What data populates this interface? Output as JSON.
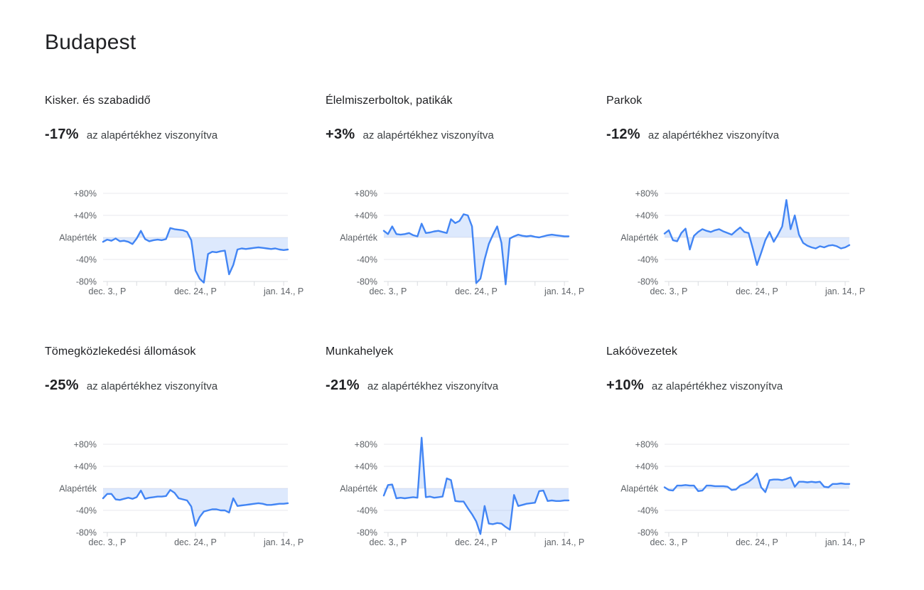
{
  "page": {
    "title": "Budapest"
  },
  "labels": {
    "caption": "az alapértékhez viszonyítva"
  },
  "colors": {
    "line": "#4285f4",
    "fill": "rgba(66,133,244,0.18)",
    "grid": "#e8eaed",
    "axis": "#dadce0",
    "text_primary": "#202124",
    "text_secondary": "#5f6368"
  },
  "chart_data": [
    {
      "type": "line",
      "title": "Kisker. és szabadidő",
      "delta": "-17%",
      "ylim": [
        -80,
        80
      ],
      "y_tick_labels": [
        "+80%",
        "+40%",
        "Alapérték",
        "-40%",
        "-80%"
      ],
      "x_tick_labels": [
        "dec. 3., P",
        "dec. 24., P",
        "jan. 14., P"
      ],
      "label_tick_day_indices": [
        1,
        22,
        43
      ],
      "minor_tick_day_indices": [
        1,
        8,
        15,
        22,
        29,
        36,
        43
      ],
      "values": [
        -8,
        -4,
        -6,
        -2,
        -7,
        -6,
        -8,
        -12,
        -2,
        12,
        -3,
        -7,
        -5,
        -4,
        -5,
        -3,
        17,
        15,
        14,
        13,
        10,
        -5,
        -60,
        -75,
        -82,
        -30,
        -26,
        -27,
        -25,
        -24,
        -67,
        -50,
        -22,
        -20,
        -21,
        -20,
        -19,
        -18,
        -19,
        -20,
        -21,
        -20,
        -22,
        -23,
        -22
      ]
    },
    {
      "type": "line",
      "title": "Élelmiszerboltok, patikák",
      "delta": "+3%",
      "ylim": [
        -80,
        80
      ],
      "y_tick_labels": [
        "+80%",
        "+40%",
        "Alapérték",
        "-40%",
        "-80%"
      ],
      "x_tick_labels": [
        "dec. 3., P",
        "dec. 24., P",
        "jan. 14., P"
      ],
      "label_tick_day_indices": [
        1,
        22,
        43
      ],
      "minor_tick_day_indices": [
        1,
        8,
        15,
        22,
        29,
        36,
        43
      ],
      "values": [
        12,
        6,
        20,
        6,
        5,
        6,
        8,
        4,
        2,
        25,
        8,
        9,
        11,
        12,
        10,
        8,
        33,
        26,
        30,
        42,
        40,
        20,
        -83,
        -75,
        -40,
        -12,
        5,
        20,
        -10,
        -85,
        -2,
        2,
        5,
        3,
        2,
        3,
        1,
        0,
        2,
        4,
        5,
        4,
        3,
        2,
        2
      ]
    },
    {
      "type": "line",
      "title": "Parkok",
      "delta": "-12%",
      "ylim": [
        -80,
        80
      ],
      "y_tick_labels": [
        "+80%",
        "+40%",
        "Alapérték",
        "-40%",
        "-80%"
      ],
      "x_tick_labels": [
        "dec. 3., P",
        "dec. 24., P",
        "jan. 14., P"
      ],
      "label_tick_day_indices": [
        1,
        22,
        43
      ],
      "minor_tick_day_indices": [
        1,
        8,
        15,
        22,
        29,
        36,
        43
      ],
      "values": [
        7,
        13,
        -5,
        -7,
        8,
        16,
        -22,
        3,
        10,
        15,
        12,
        10,
        13,
        15,
        11,
        8,
        5,
        12,
        18,
        10,
        8,
        -20,
        -50,
        -28,
        -5,
        10,
        -8,
        5,
        20,
        68,
        15,
        40,
        5,
        -10,
        -15,
        -18,
        -20,
        -16,
        -18,
        -15,
        -14,
        -16,
        -20,
        -18,
        -14
      ]
    },
    {
      "type": "line",
      "title": "Tömegközlekedési állomások",
      "delta": "-25%",
      "ylim": [
        -80,
        80
      ],
      "y_tick_labels": [
        "+80%",
        "+40%",
        "Alapérték",
        "-40%",
        "-80%"
      ],
      "x_tick_labels": [
        "dec. 3., P",
        "dec. 24., P",
        "jan. 14., P"
      ],
      "label_tick_day_indices": [
        1,
        22,
        43
      ],
      "minor_tick_day_indices": [
        1,
        8,
        15,
        22,
        29,
        36,
        43
      ],
      "values": [
        -18,
        -10,
        -10,
        -20,
        -21,
        -19,
        -17,
        -19,
        -16,
        -4,
        -19,
        -17,
        -16,
        -15,
        -15,
        -14,
        -3,
        -8,
        -18,
        -20,
        -22,
        -33,
        -68,
        -52,
        -42,
        -40,
        -38,
        -38,
        -40,
        -40,
        -44,
        -18,
        -32,
        -31,
        -30,
        -29,
        -28,
        -27,
        -28,
        -30,
        -30,
        -29,
        -28,
        -28,
        -27
      ]
    },
    {
      "type": "line",
      "title": "Munkahelyek",
      "delta": "-21%",
      "ylim": [
        -80,
        80
      ],
      "y_tick_labels": [
        "+80%",
        "+40%",
        "Alapérték",
        "-40%",
        "-80%"
      ],
      "x_tick_labels": [
        "dec. 3., P",
        "dec. 24., P",
        "jan. 14., P"
      ],
      "label_tick_day_indices": [
        1,
        22,
        43
      ],
      "minor_tick_day_indices": [
        1,
        8,
        15,
        22,
        29,
        36,
        43
      ],
      "values": [
        -13,
        6,
        7,
        -18,
        -17,
        -18,
        -17,
        -16,
        -17,
        92,
        -16,
        -15,
        -17,
        -16,
        -15,
        18,
        15,
        -23,
        -24,
        -24,
        -36,
        -47,
        -60,
        -83,
        -32,
        -64,
        -65,
        -63,
        -64,
        -70,
        -75,
        -12,
        -32,
        -30,
        -28,
        -27,
        -26,
        -5,
        -4,
        -23,
        -22,
        -23,
        -23,
        -22,
        -22
      ]
    },
    {
      "type": "line",
      "title": "Lakóövezetek",
      "delta": "+10%",
      "ylim": [
        -80,
        80
      ],
      "y_tick_labels": [
        "+80%",
        "+40%",
        "Alapérték",
        "-40%",
        "-80%"
      ],
      "x_tick_labels": [
        "dec. 3., P",
        "dec. 24., P",
        "jan. 14., P"
      ],
      "label_tick_day_indices": [
        1,
        22,
        43
      ],
      "minor_tick_day_indices": [
        1,
        8,
        15,
        22,
        29,
        36,
        43
      ],
      "values": [
        2,
        -3,
        -4,
        5,
        5,
        6,
        5,
        5,
        -5,
        -4,
        5,
        5,
        4,
        4,
        4,
        3,
        -3,
        -2,
        5,
        8,
        12,
        18,
        27,
        2,
        -7,
        15,
        16,
        16,
        15,
        17,
        20,
        3,
        12,
        12,
        11,
        12,
        11,
        12,
        3,
        2,
        8,
        8,
        9,
        8,
        8
      ]
    }
  ]
}
